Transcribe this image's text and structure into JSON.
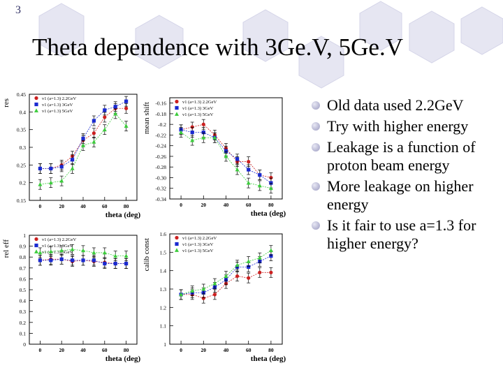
{
  "slide": {
    "page_number": "3",
    "title": "Theta dependence with 3Ge.V, 5Ge.V",
    "bullets": [
      "Old data used 2.2GeV",
      "Try with higher energy",
      "Leakage is a function of proton beam energy",
      "More leakage on higher energy",
      "Is it fair to use a=1.3 for higher energy?"
    ]
  },
  "colors": {
    "red": "#cc2020",
    "blue": "#1a2ad0",
    "green": "#3ccc3c",
    "decoration": "#e6e6f2"
  },
  "chart_data": [
    {
      "type": "scatter",
      "ylabel": "res",
      "xlabel": "theta (deg)",
      "xlim": [
        -10,
        90
      ],
      "ylim": [
        0.15,
        0.45
      ],
      "xticks": [
        0,
        20,
        40,
        60,
        80
      ],
      "yticks": [
        0.15,
        0.2,
        0.25,
        0.3,
        0.35,
        0.4,
        0.45
      ],
      "ytick_labels": [
        "0.15",
        "0.2",
        "0.25",
        "0.3",
        "0.35",
        "0.4",
        "0.45"
      ],
      "x": [
        0,
        10,
        20,
        30,
        40,
        50,
        60,
        70,
        80
      ],
      "series": [
        {
          "name": "v1 (a=1.3) 2.2GeV",
          "color": "red",
          "values": [
            0.24,
            0.24,
            0.25,
            0.275,
            0.32,
            0.34,
            0.385,
            0.41,
            0.41
          ]
        },
        {
          "name": "v1 (a=1.3) 3GeV",
          "color": "blue",
          "values": [
            0.24,
            0.24,
            0.245,
            0.265,
            0.325,
            0.375,
            0.405,
            0.415,
            0.43
          ]
        },
        {
          "name": "v1 (a=1.3) 5GeV",
          "color": "green",
          "values": [
            0.195,
            0.2,
            0.205,
            0.24,
            0.305,
            0.315,
            0.35,
            0.395,
            0.36
          ]
        }
      ]
    },
    {
      "type": "scatter",
      "ylabel": "mean shift",
      "xlabel": "theta (deg)",
      "xlim": [
        -10,
        90
      ],
      "ylim": [
        -0.34,
        -0.15
      ],
      "xticks": [
        0,
        20,
        40,
        60,
        80
      ],
      "yticks": [
        -0.34,
        -0.32,
        -0.3,
        -0.28,
        -0.26,
        -0.24,
        -0.22,
        -0.2,
        -0.18,
        -0.16
      ],
      "ytick_labels": [
        "-0.34",
        "-0.32",
        "-0.30",
        "-0.28",
        "-0.26",
        "-0.24",
        "-0.22",
        "-0.2",
        "-0.18",
        "-0.16"
      ],
      "x": [
        0,
        10,
        20,
        30,
        40,
        50,
        60,
        70,
        80
      ],
      "series": [
        {
          "name": "v1 (a=1.3) 2.2GeV",
          "color": "red",
          "values": [
            -0.21,
            -0.205,
            -0.2,
            -0.22,
            -0.245,
            -0.27,
            -0.27,
            -0.295,
            -0.3
          ]
        },
        {
          "name": "v1 (a=1.3) 3GeV",
          "color": "blue",
          "values": [
            -0.21,
            -0.215,
            -0.215,
            -0.225,
            -0.25,
            -0.265,
            -0.285,
            -0.295,
            -0.31
          ]
        },
        {
          "name": "v1 (a=1.3) 5GeV",
          "color": "green",
          "values": [
            -0.215,
            -0.23,
            -0.225,
            -0.225,
            -0.26,
            -0.285,
            -0.31,
            -0.315,
            -0.32
          ]
        }
      ]
    },
    {
      "type": "scatter",
      "ylabel": "rel eff",
      "xlabel": "theta (deg)",
      "xlim": [
        -10,
        90
      ],
      "ylim": [
        0,
        1
      ],
      "xticks": [
        0,
        20,
        40,
        60,
        80
      ],
      "yticks": [
        0,
        0.1,
        0.2,
        0.3,
        0.4,
        0.5,
        0.6,
        0.7,
        0.8,
        0.9,
        1
      ],
      "ytick_labels": [
        "0",
        "0.1",
        "0.2",
        "0.3",
        "0.4",
        "0.5",
        "0.6",
        "0.7",
        "0.8",
        "0.9",
        "1"
      ],
      "x": [
        0,
        10,
        20,
        30,
        40,
        50,
        60,
        70,
        80
      ],
      "series": [
        {
          "name": "v1 (a=1.3) 2.2GeV",
          "color": "red",
          "values": [
            0.77,
            0.78,
            0.78,
            0.76,
            0.77,
            0.76,
            0.75,
            0.74,
            0.74
          ]
        },
        {
          "name": "v1 (a=1.3) 3GeV",
          "color": "blue",
          "values": [
            0.77,
            0.77,
            0.78,
            0.77,
            0.77,
            0.77,
            0.74,
            0.74,
            0.74
          ]
        },
        {
          "name": "v1 (a=1.3) 5GeV",
          "color": "green",
          "values": [
            0.84,
            0.85,
            0.86,
            0.87,
            0.86,
            0.84,
            0.84,
            0.81,
            0.81
          ]
        }
      ]
    },
    {
      "type": "scatter",
      "ylabel": "calib const",
      "xlabel": "theta (deg)",
      "xlim": [
        -10,
        90
      ],
      "ylim": [
        1,
        1.6
      ],
      "xticks": [
        0,
        20,
        40,
        60,
        80
      ],
      "yticks": [
        1,
        1.1,
        1.2,
        1.3,
        1.4,
        1.5,
        1.6
      ],
      "ytick_labels": [
        "1",
        "1.1",
        "1.2",
        "1.3",
        "1.4",
        "1.5",
        "1.6"
      ],
      "x": [
        0,
        10,
        20,
        30,
        40,
        50,
        60,
        70,
        80
      ],
      "series": [
        {
          "name": "v1 (a=1.3) 2.2GeV",
          "color": "red",
          "values": [
            1.27,
            1.27,
            1.25,
            1.27,
            1.33,
            1.37,
            1.36,
            1.39,
            1.39
          ]
        },
        {
          "name": "v1 (a=1.3) 3GeV",
          "color": "blue",
          "values": [
            1.27,
            1.28,
            1.28,
            1.31,
            1.35,
            1.42,
            1.42,
            1.45,
            1.48
          ]
        },
        {
          "name": "v1 (a=1.3) 5GeV",
          "color": "green",
          "values": [
            1.27,
            1.29,
            1.3,
            1.33,
            1.37,
            1.43,
            1.45,
            1.47,
            1.51
          ]
        }
      ]
    }
  ]
}
